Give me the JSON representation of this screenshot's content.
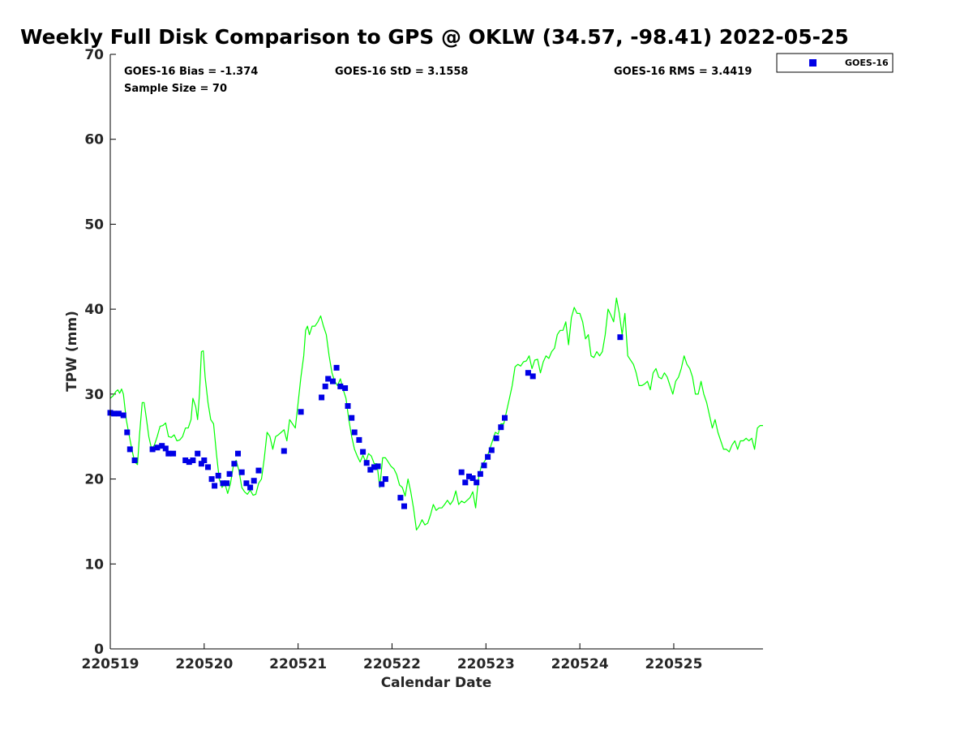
{
  "chart_data": {
    "type": "scatter",
    "title": "Weekly Full Disk Comparison to GPS @ OKLW (34.57, -98.41) 2022-05-25",
    "xlabel": "Calendar Date",
    "ylabel": "TPW (mm)",
    "xlim": [
      0,
      6.95
    ],
    "ylim": [
      0,
      70
    ],
    "x_ticks": [
      {
        "value": 0,
        "label": "220519"
      },
      {
        "value": 1,
        "label": "220520"
      },
      {
        "value": 2,
        "label": "220521"
      },
      {
        "value": 3,
        "label": "220522"
      },
      {
        "value": 4,
        "label": "220523"
      },
      {
        "value": 5,
        "label": "220524"
      },
      {
        "value": 6,
        "label": "220525"
      }
    ],
    "y_ticks": [
      0,
      10,
      20,
      30,
      40,
      50,
      60,
      70
    ],
    "grid": false,
    "legend_position": "top-right outside",
    "stats": {
      "bias": "GOES-16 Bias = -1.374",
      "sample": "Sample Size = 70",
      "std": "GOES-16 StD = 3.1558",
      "rms": "GOES-16 RMS = 3.4419"
    },
    "series": [
      {
        "name": "GOES-16",
        "kind": "scatter",
        "marker": "square",
        "color": "#0000e6",
        "points": [
          [
            0.0,
            27.8
          ],
          [
            0.04,
            27.7
          ],
          [
            0.09,
            27.7
          ],
          [
            0.14,
            27.5
          ],
          [
            0.18,
            25.5
          ],
          [
            0.21,
            23.5
          ],
          [
            0.26,
            22.2
          ],
          [
            0.45,
            23.5
          ],
          [
            0.5,
            23.7
          ],
          [
            0.55,
            23.9
          ],
          [
            0.59,
            23.6
          ],
          [
            0.62,
            23.0
          ],
          [
            0.67,
            23.0
          ],
          [
            0.8,
            22.2
          ],
          [
            0.84,
            22.0
          ],
          [
            0.88,
            22.2
          ],
          [
            0.93,
            23.0
          ],
          [
            0.97,
            21.8
          ],
          [
            1.0,
            22.2
          ],
          [
            1.04,
            21.4
          ],
          [
            1.08,
            20.0
          ],
          [
            1.11,
            19.2
          ],
          [
            1.15,
            20.4
          ],
          [
            1.2,
            19.5
          ],
          [
            1.24,
            19.5
          ],
          [
            1.27,
            20.6
          ],
          [
            1.32,
            21.8
          ],
          [
            1.36,
            23.0
          ],
          [
            1.4,
            20.8
          ],
          [
            1.45,
            19.5
          ],
          [
            1.49,
            19.0
          ],
          [
            1.53,
            19.8
          ],
          [
            1.58,
            21.0
          ],
          [
            1.85,
            23.3
          ],
          [
            2.03,
            27.9
          ],
          [
            2.25,
            29.6
          ],
          [
            2.29,
            30.9
          ],
          [
            2.32,
            31.8
          ],
          [
            2.37,
            31.5
          ],
          [
            2.41,
            33.1
          ],
          [
            2.45,
            30.9
          ],
          [
            2.5,
            30.7
          ],
          [
            2.53,
            28.6
          ],
          [
            2.57,
            27.2
          ],
          [
            2.6,
            25.5
          ],
          [
            2.65,
            24.6
          ],
          [
            2.69,
            23.2
          ],
          [
            2.73,
            21.9
          ],
          [
            2.77,
            21.1
          ],
          [
            2.81,
            21.4
          ],
          [
            2.85,
            21.5
          ],
          [
            2.89,
            19.4
          ],
          [
            2.93,
            20.0
          ],
          [
            3.09,
            17.8
          ],
          [
            3.13,
            16.8
          ],
          [
            3.74,
            20.8
          ],
          [
            3.78,
            19.6
          ],
          [
            3.82,
            20.3
          ],
          [
            3.86,
            20.1
          ],
          [
            3.9,
            19.6
          ],
          [
            3.94,
            20.6
          ],
          [
            3.98,
            21.6
          ],
          [
            4.02,
            22.6
          ],
          [
            4.06,
            23.4
          ],
          [
            4.11,
            24.8
          ],
          [
            4.16,
            26.1
          ],
          [
            4.2,
            27.2
          ],
          [
            4.45,
            32.5
          ],
          [
            4.5,
            32.1
          ],
          [
            5.43,
            36.7
          ]
        ]
      },
      {
        "name": "",
        "kind": "line",
        "color": "#00ff00",
        "points": [
          [
            0.0,
            29.5
          ],
          [
            0.03,
            29.8
          ],
          [
            0.06,
            30.3
          ],
          [
            0.08,
            30.5
          ],
          [
            0.1,
            30.1
          ],
          [
            0.12,
            30.6
          ],
          [
            0.14,
            30.0
          ],
          [
            0.17,
            27.0
          ],
          [
            0.2,
            25.2
          ],
          [
            0.23,
            23.5
          ],
          [
            0.26,
            22.0
          ],
          [
            0.29,
            21.7
          ],
          [
            0.31,
            25.0
          ],
          [
            0.34,
            29.0
          ],
          [
            0.36,
            29.0
          ],
          [
            0.38,
            27.5
          ],
          [
            0.41,
            25.0
          ],
          [
            0.44,
            23.5
          ],
          [
            0.47,
            24.0
          ],
          [
            0.5,
            25.0
          ],
          [
            0.53,
            26.2
          ],
          [
            0.56,
            26.3
          ],
          [
            0.59,
            26.6
          ],
          [
            0.62,
            25.0
          ],
          [
            0.65,
            24.9
          ],
          [
            0.68,
            25.2
          ],
          [
            0.71,
            24.5
          ],
          [
            0.74,
            24.6
          ],
          [
            0.77,
            25.0
          ],
          [
            0.8,
            26.0
          ],
          [
            0.83,
            26.0
          ],
          [
            0.86,
            27.0
          ],
          [
            0.88,
            29.5
          ],
          [
            0.91,
            28.5
          ],
          [
            0.93,
            27.0
          ],
          [
            0.95,
            30.0
          ],
          [
            0.97,
            35.0
          ],
          [
            0.99,
            35.1
          ],
          [
            1.01,
            32.0
          ],
          [
            1.04,
            29.0
          ],
          [
            1.07,
            27.0
          ],
          [
            1.1,
            26.5
          ],
          [
            1.13,
            23.0
          ],
          [
            1.16,
            20.0
          ],
          [
            1.19,
            19.0
          ],
          [
            1.22,
            19.5
          ],
          [
            1.25,
            18.3
          ],
          [
            1.28,
            19.5
          ],
          [
            1.31,
            21.5
          ],
          [
            1.34,
            22.2
          ],
          [
            1.37,
            21.0
          ],
          [
            1.4,
            19.0
          ],
          [
            1.43,
            18.5
          ],
          [
            1.46,
            18.2
          ],
          [
            1.49,
            18.7
          ],
          [
            1.52,
            18.1
          ],
          [
            1.55,
            18.2
          ],
          [
            1.58,
            19.5
          ],
          [
            1.61,
            20.0
          ],
          [
            1.64,
            22.5
          ],
          [
            1.67,
            25.5
          ],
          [
            1.7,
            25.0
          ],
          [
            1.73,
            23.5
          ],
          [
            1.76,
            25.0
          ],
          [
            1.79,
            25.2
          ],
          [
            1.82,
            25.5
          ],
          [
            1.85,
            25.8
          ],
          [
            1.88,
            24.5
          ],
          [
            1.91,
            27.0
          ],
          [
            1.94,
            26.5
          ],
          [
            1.97,
            26.0
          ],
          [
            2.0,
            29.0
          ],
          [
            2.03,
            32.0
          ],
          [
            2.06,
            34.5
          ],
          [
            2.08,
            37.5
          ],
          [
            2.1,
            38.0
          ],
          [
            2.12,
            37.0
          ],
          [
            2.15,
            38.0
          ],
          [
            2.18,
            38.0
          ],
          [
            2.21,
            38.5
          ],
          [
            2.24,
            39.2
          ],
          [
            2.27,
            38.0
          ],
          [
            2.3,
            37.0
          ],
          [
            2.33,
            34.5
          ],
          [
            2.36,
            32.5
          ],
          [
            2.39,
            31.5
          ],
          [
            2.42,
            31.0
          ],
          [
            2.45,
            31.8
          ],
          [
            2.48,
            30.5
          ],
          [
            2.51,
            29.5
          ],
          [
            2.54,
            27.0
          ],
          [
            2.57,
            25.0
          ],
          [
            2.6,
            23.5
          ],
          [
            2.63,
            22.7
          ],
          [
            2.66,
            22.0
          ],
          [
            2.69,
            22.8
          ],
          [
            2.72,
            22.0
          ],
          [
            2.75,
            23.0
          ],
          [
            2.78,
            22.7
          ],
          [
            2.81,
            21.8
          ],
          [
            2.84,
            21.8
          ],
          [
            2.87,
            19.0
          ],
          [
            2.9,
            22.5
          ],
          [
            2.93,
            22.5
          ],
          [
            2.96,
            22.0
          ],
          [
            2.99,
            21.5
          ],
          [
            3.02,
            21.2
          ],
          [
            3.05,
            20.5
          ],
          [
            3.08,
            19.3
          ],
          [
            3.11,
            19.0
          ],
          [
            3.14,
            18.0
          ],
          [
            3.17,
            20.0
          ],
          [
            3.2,
            18.5
          ],
          [
            3.23,
            16.5
          ],
          [
            3.26,
            14.0
          ],
          [
            3.29,
            14.5
          ],
          [
            3.32,
            15.2
          ],
          [
            3.35,
            14.6
          ],
          [
            3.38,
            14.8
          ],
          [
            3.41,
            15.8
          ],
          [
            3.44,
            17.0
          ],
          [
            3.47,
            16.3
          ],
          [
            3.5,
            16.6
          ],
          [
            3.53,
            16.6
          ],
          [
            3.56,
            17.0
          ],
          [
            3.59,
            17.5
          ],
          [
            3.62,
            17.0
          ],
          [
            3.65,
            17.5
          ],
          [
            3.68,
            18.6
          ],
          [
            3.71,
            17.0
          ],
          [
            3.74,
            17.4
          ],
          [
            3.77,
            17.2
          ],
          [
            3.8,
            17.5
          ],
          [
            3.83,
            17.8
          ],
          [
            3.86,
            18.5
          ],
          [
            3.89,
            16.6
          ],
          [
            3.92,
            20.0
          ],
          [
            3.95,
            21.5
          ],
          [
            3.98,
            22.0
          ],
          [
            4.01,
            22.5
          ],
          [
            4.04,
            23.5
          ],
          [
            4.07,
            24.5
          ],
          [
            4.1,
            25.5
          ],
          [
            4.13,
            25.3
          ],
          [
            4.16,
            26.5
          ],
          [
            4.19,
            26.5
          ],
          [
            4.22,
            28.0
          ],
          [
            4.25,
            29.5
          ],
          [
            4.28,
            31.0
          ],
          [
            4.31,
            33.2
          ],
          [
            4.34,
            33.5
          ],
          [
            4.37,
            33.3
          ],
          [
            4.4,
            33.8
          ],
          [
            4.43,
            33.9
          ],
          [
            4.46,
            34.5
          ],
          [
            4.49,
            33.0
          ],
          [
            4.52,
            34.0
          ],
          [
            4.55,
            34.1
          ],
          [
            4.58,
            32.5
          ],
          [
            4.61,
            33.8
          ],
          [
            4.64,
            34.5
          ],
          [
            4.67,
            34.2
          ],
          [
            4.7,
            35.0
          ],
          [
            4.73,
            35.4
          ],
          [
            4.76,
            37.0
          ],
          [
            4.79,
            37.5
          ],
          [
            4.82,
            37.5
          ],
          [
            4.85,
            38.5
          ],
          [
            4.88,
            35.8
          ],
          [
            4.91,
            39.0
          ],
          [
            4.94,
            40.2
          ],
          [
            4.97,
            39.5
          ],
          [
            5.0,
            39.5
          ],
          [
            5.03,
            38.5
          ],
          [
            5.06,
            36.5
          ],
          [
            5.09,
            37.0
          ],
          [
            5.12,
            34.5
          ],
          [
            5.15,
            34.3
          ],
          [
            5.18,
            35.0
          ],
          [
            5.21,
            34.5
          ],
          [
            5.24,
            35.0
          ],
          [
            5.27,
            37.0
          ],
          [
            5.3,
            40.0
          ],
          [
            5.33,
            39.3
          ],
          [
            5.36,
            38.5
          ],
          [
            5.39,
            41.3
          ],
          [
            5.42,
            39.5
          ],
          [
            5.45,
            37.0
          ],
          [
            5.48,
            39.5
          ],
          [
            5.51,
            34.5
          ],
          [
            5.54,
            34.0
          ],
          [
            5.57,
            33.5
          ],
          [
            5.6,
            32.5
          ],
          [
            5.63,
            31.0
          ],
          [
            5.66,
            31.0
          ],
          [
            5.69,
            31.2
          ],
          [
            5.72,
            31.5
          ],
          [
            5.75,
            30.5
          ],
          [
            5.78,
            32.5
          ],
          [
            5.81,
            33.0
          ],
          [
            5.84,
            32.0
          ],
          [
            5.87,
            31.8
          ],
          [
            5.9,
            32.5
          ],
          [
            5.93,
            32.0
          ],
          [
            5.96,
            31.0
          ],
          [
            5.99,
            30.0
          ],
          [
            6.02,
            31.5
          ],
          [
            6.05,
            32.0
          ],
          [
            6.08,
            33.0
          ],
          [
            6.11,
            34.5
          ],
          [
            6.14,
            33.5
          ],
          [
            6.17,
            33.0
          ],
          [
            6.2,
            32.0
          ],
          [
            6.23,
            30.0
          ],
          [
            6.26,
            30.0
          ],
          [
            6.29,
            31.5
          ],
          [
            6.32,
            30.0
          ],
          [
            6.35,
            29.0
          ],
          [
            6.38,
            27.5
          ],
          [
            6.41,
            26.0
          ],
          [
            6.44,
            27.0
          ],
          [
            6.47,
            25.5
          ],
          [
            6.5,
            24.5
          ],
          [
            6.53,
            23.5
          ],
          [
            6.56,
            23.5
          ],
          [
            6.59,
            23.2
          ],
          [
            6.62,
            24.0
          ],
          [
            6.65,
            24.5
          ],
          [
            6.68,
            23.5
          ],
          [
            6.71,
            24.5
          ],
          [
            6.74,
            24.5
          ],
          [
            6.77,
            24.8
          ],
          [
            6.8,
            24.5
          ],
          [
            6.83,
            24.8
          ],
          [
            6.86,
            23.5
          ],
          [
            6.89,
            26.0
          ],
          [
            6.92,
            26.3
          ],
          [
            6.95,
            26.3
          ]
        ]
      }
    ]
  }
}
